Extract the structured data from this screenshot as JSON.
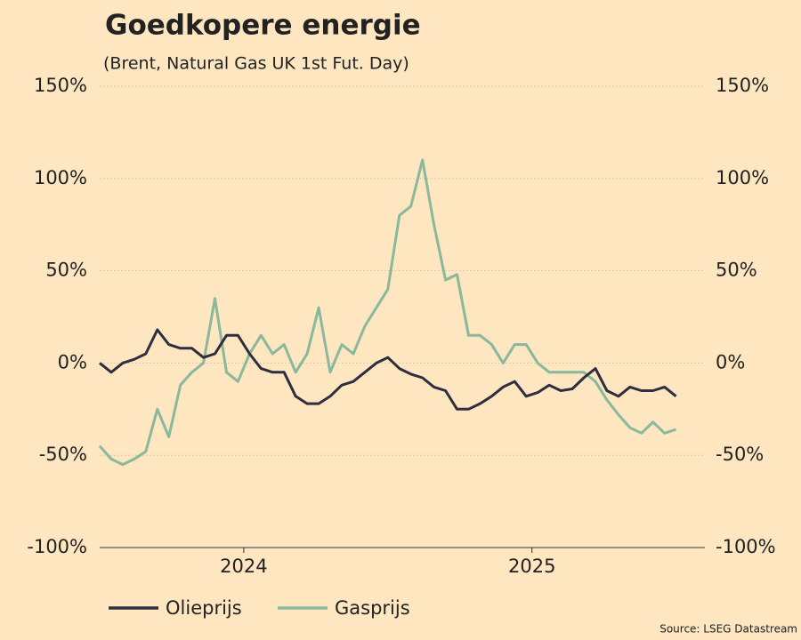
{
  "chart_data": {
    "type": "line",
    "title": "Goedkopere energie",
    "subtitle": "(Brent, Natural Gas UK 1st Fut. Day)",
    "source": "Source: LSEG Datastream",
    "x": [
      2023.5,
      2023.54,
      2023.58,
      2023.62,
      2023.66,
      2023.7,
      2023.74,
      2023.78,
      2023.82,
      2023.86,
      2023.9,
      2023.94,
      2023.98,
      2024.02,
      2024.06,
      2024.1,
      2024.14,
      2024.18,
      2024.22,
      2024.26,
      2024.3,
      2024.34,
      2024.38,
      2024.42,
      2024.46,
      2024.5,
      2024.54,
      2024.58,
      2024.62,
      2024.66,
      2024.7,
      2024.74,
      2024.78,
      2024.82,
      2024.86,
      2024.9,
      2024.94,
      2024.98,
      2025.02,
      2025.06,
      2025.1,
      2025.14,
      2025.18,
      2025.22,
      2025.26,
      2025.3,
      2025.34,
      2025.38,
      2025.42,
      2025.46,
      2025.5
    ],
    "xlim": [
      2023.5,
      2025.6
    ],
    "xticks": [
      2024,
      2025
    ],
    "ylim": [
      -100,
      150
    ],
    "yticks": [
      {
        "value": -100,
        "label": "-100%"
      },
      {
        "value": -50,
        "label": "-50%"
      },
      {
        "value": 0,
        "label": "0%"
      },
      {
        "value": 50,
        "label": "50%"
      },
      {
        "value": 100,
        "label": "100%"
      },
      {
        "value": 150,
        "label": "150%"
      }
    ],
    "y2lim": [
      -100,
      150
    ],
    "y2ticks": [
      {
        "value": -100,
        "label": "-100%"
      },
      {
        "value": -50,
        "label": "-50%"
      },
      {
        "value": 0,
        "label": "0%"
      },
      {
        "value": 50,
        "label": "50%"
      },
      {
        "value": 100,
        "label": "100%"
      },
      {
        "value": 150,
        "label": "150%"
      }
    ],
    "grid": true,
    "legend": "bottom",
    "series": [
      {
        "name": "Olieprijs",
        "color": "#2e2e40",
        "values": [
          0,
          -5,
          0,
          2,
          5,
          18,
          10,
          8,
          8,
          3,
          5,
          15,
          15,
          5,
          -3,
          -5,
          -5,
          -18,
          -22,
          -22,
          -18,
          -12,
          -10,
          -5,
          0,
          3,
          -3,
          -6,
          -8,
          -13,
          -15,
          -25,
          -25,
          -22,
          -18,
          -13,
          -10,
          -18,
          -16,
          -12,
          -15,
          -14,
          -8,
          -3,
          -15,
          -18,
          -13,
          -15,
          -15,
          -13,
          -18
        ]
      },
      {
        "name": "Gasprijs",
        "color": "#8ab89c",
        "values": [
          -45,
          -52,
          -55,
          -52,
          -48,
          -25,
          -40,
          -12,
          -5,
          0,
          35,
          -5,
          -10,
          5,
          15,
          5,
          10,
          -5,
          5,
          30,
          -5,
          10,
          5,
          20,
          30,
          40,
          80,
          85,
          110,
          75,
          45,
          48,
          15,
          15,
          10,
          0,
          10,
          10,
          0,
          -5,
          -5,
          -5,
          -5,
          -10,
          -20,
          -28,
          -35,
          -38,
          -32,
          -38,
          -36
        ]
      }
    ]
  }
}
